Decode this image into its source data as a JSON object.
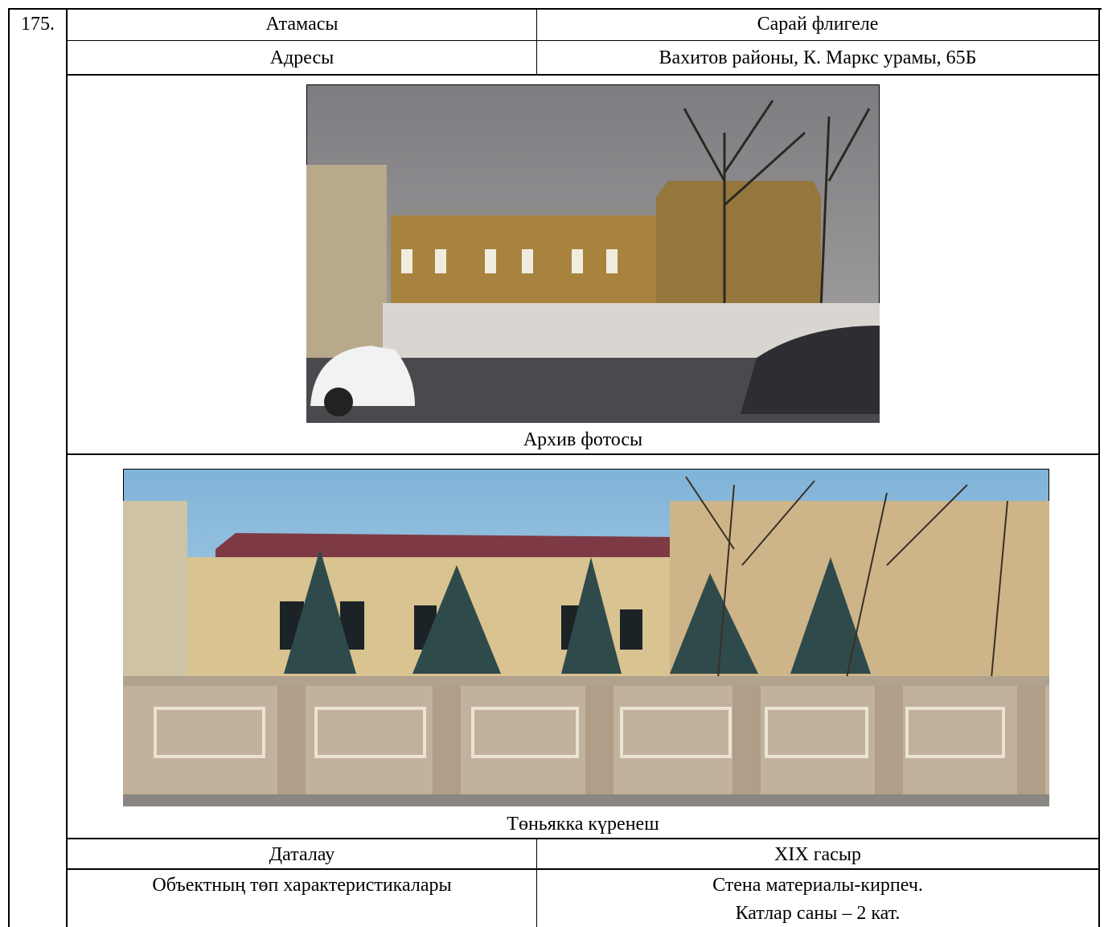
{
  "item_number": "175.",
  "table": {
    "rows": [
      [
        "Атамасы",
        "Сарай флигеле"
      ],
      [
        "Адресы",
        "Вахитов районы, К. Маркс урамы, 65Б"
      ]
    ],
    "archive_caption": "Архив фотосы",
    "current_caption": "Төньякка күренеш",
    "rows_after": [
      [
        "Даталау",
        "XIX гасыр"
      ],
      [
        "Объектның төп характеристикалары",
        [
          "Стена материалы-кирпеч.",
          "Катлар саны – 2 кат."
        ]
      ]
    ]
  }
}
